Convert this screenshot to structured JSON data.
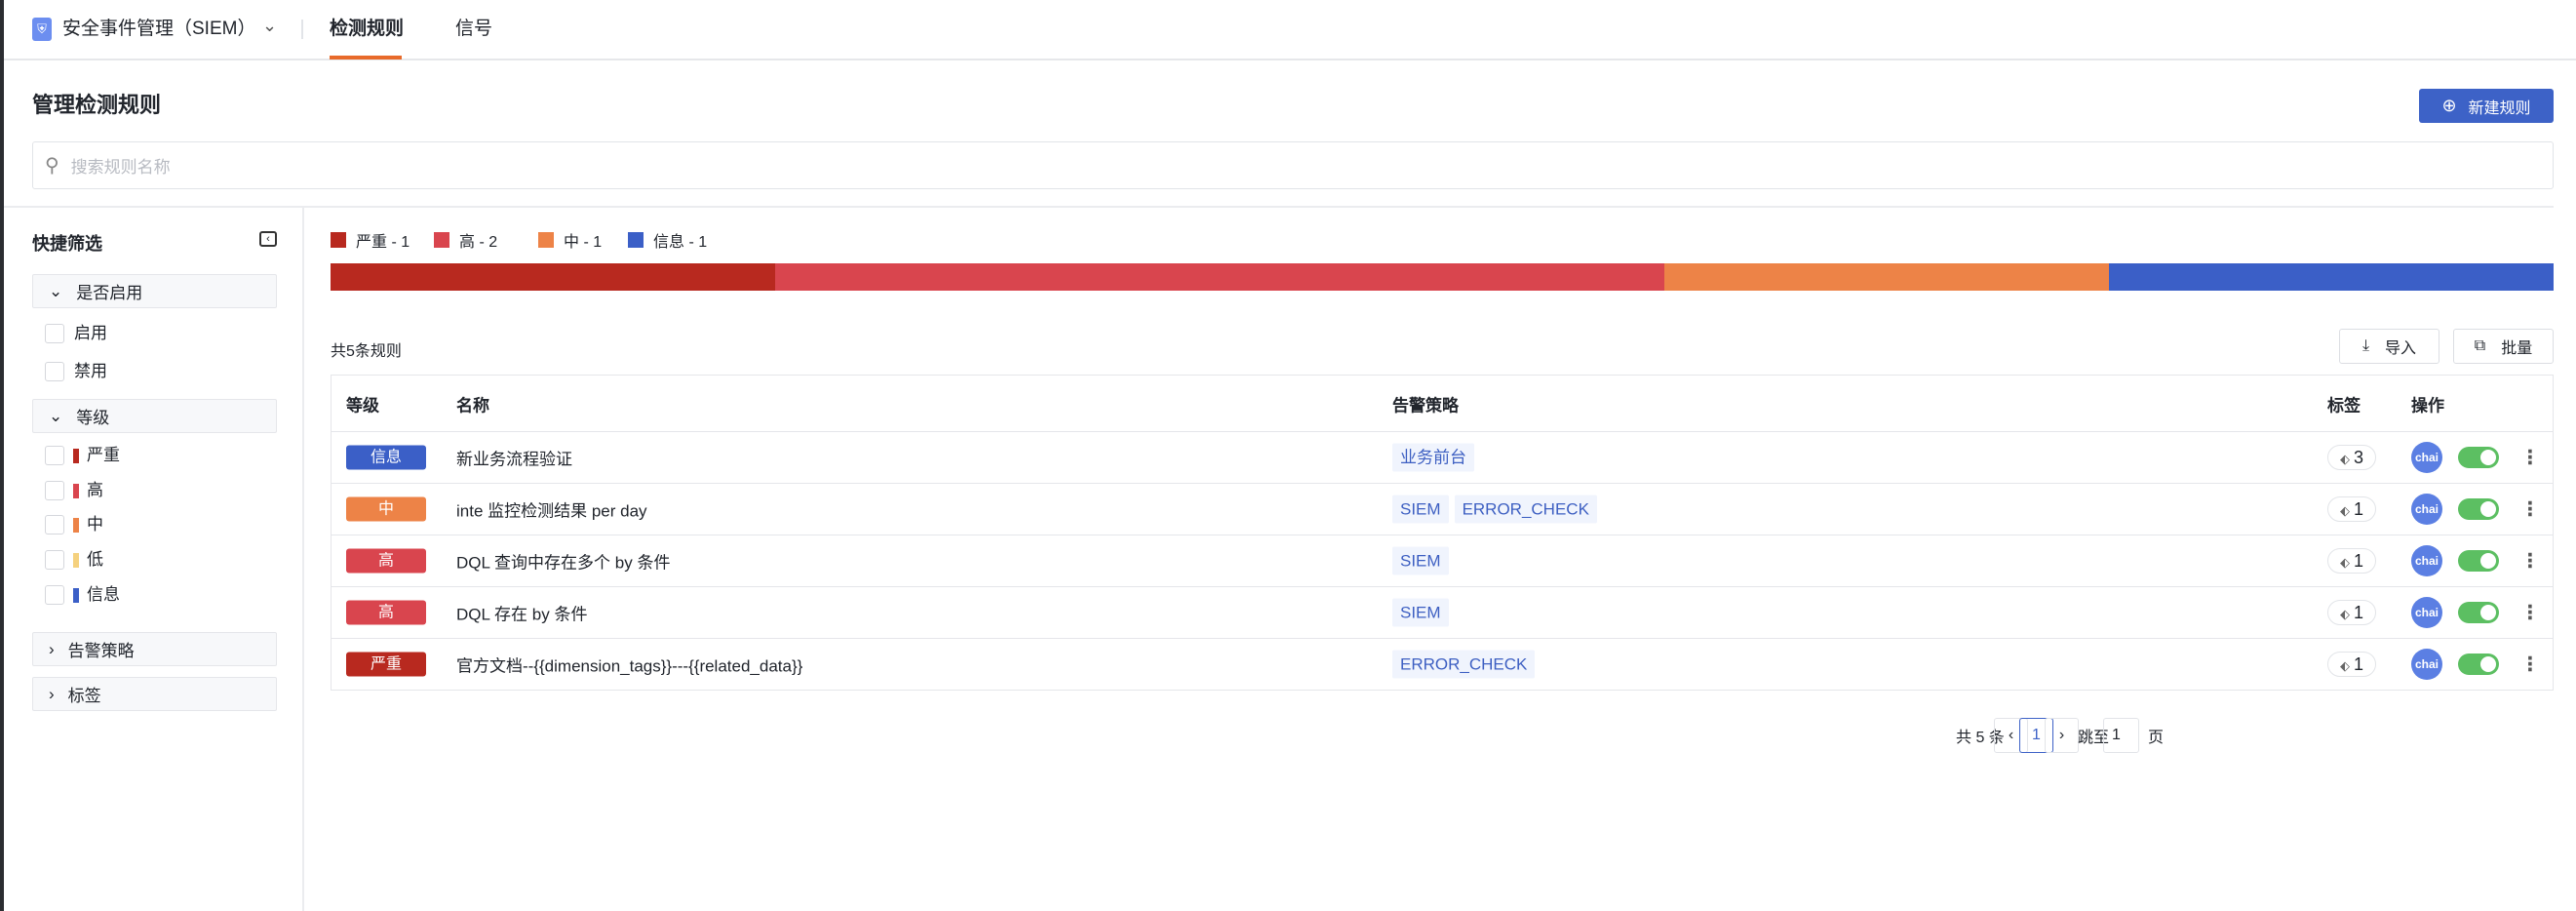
{
  "header": {
    "app_title": "安全事件管理（SIEM）",
    "tabs": [
      {
        "label": "检测规则",
        "active": true
      },
      {
        "label": "信号",
        "active": false
      }
    ],
    "accent": "#e86a2a"
  },
  "page": {
    "title": "管理检测规则",
    "new_button": "新建规则",
    "search_placeholder": "搜索规则名称"
  },
  "sidebar": {
    "title": "快捷筛选",
    "groups": [
      {
        "label": "是否启用",
        "expanded": true,
        "options": [
          "启用",
          "禁用"
        ]
      },
      {
        "label": "等级",
        "expanded": true,
        "options": [
          {
            "label": "严重",
            "color": "#b8291f"
          },
          {
            "label": "高",
            "color": "#d9454e"
          },
          {
            "label": "中",
            "color": "#ed8347"
          },
          {
            "label": "低",
            "color": "#f5d17e"
          },
          {
            "label": "信息",
            "color": "#3b5fc7"
          }
        ]
      },
      {
        "label": "告警策略",
        "expanded": false
      },
      {
        "label": "标签",
        "expanded": false
      }
    ]
  },
  "distribution": [
    {
      "label": "严重 - 1",
      "level": "严重",
      "count": 1,
      "color": "#b8291f"
    },
    {
      "label": "高 - 2",
      "level": "高",
      "count": 2,
      "color": "#d9454e"
    },
    {
      "label": "中 - 1",
      "level": "中",
      "count": 1,
      "color": "#ed8347"
    },
    {
      "label": "信息 - 1",
      "level": "信息",
      "count": 1,
      "color": "#3b5fc7"
    }
  ],
  "toolbar": {
    "count": "共5条规则",
    "import": "导入",
    "batch": "批量"
  },
  "table": {
    "columns": [
      "等级",
      "名称",
      "告警策略",
      "标签",
      "操作"
    ],
    "rows": [
      {
        "level": "信息",
        "color": "#3b5fc7",
        "name": "新业务流程验证",
        "policies": [
          "业务前台"
        ],
        "tags": "3",
        "owner": "chai",
        "enabled": true
      },
      {
        "level": "中",
        "color": "#ed8347",
        "name": "inte 监控检测结果 per day",
        "policies": [
          "SIEM",
          "ERROR_CHECK"
        ],
        "tags": "1",
        "owner": "chai",
        "enabled": true
      },
      {
        "level": "高",
        "color": "#d9454e",
        "name": "DQL 查询中存在多个 by 条件",
        "policies": [
          "SIEM"
        ],
        "tags": "1",
        "owner": "chai",
        "enabled": true
      },
      {
        "level": "高",
        "color": "#d9454e",
        "name": "DQL 存在 by 条件",
        "policies": [
          "SIEM"
        ],
        "tags": "1",
        "owner": "chai",
        "enabled": true
      },
      {
        "level": "严重",
        "color": "#b8291f",
        "name": "官方文档--{{dimension_tags}}---{{related_data}}",
        "policies": [
          "ERROR_CHECK"
        ],
        "tags": "1",
        "owner": "chai",
        "enabled": true
      }
    ]
  },
  "pagination": {
    "total": "共 5 条",
    "current": "1",
    "jump_label": "跳至",
    "jump_value": "1",
    "page_suffix": "页"
  }
}
